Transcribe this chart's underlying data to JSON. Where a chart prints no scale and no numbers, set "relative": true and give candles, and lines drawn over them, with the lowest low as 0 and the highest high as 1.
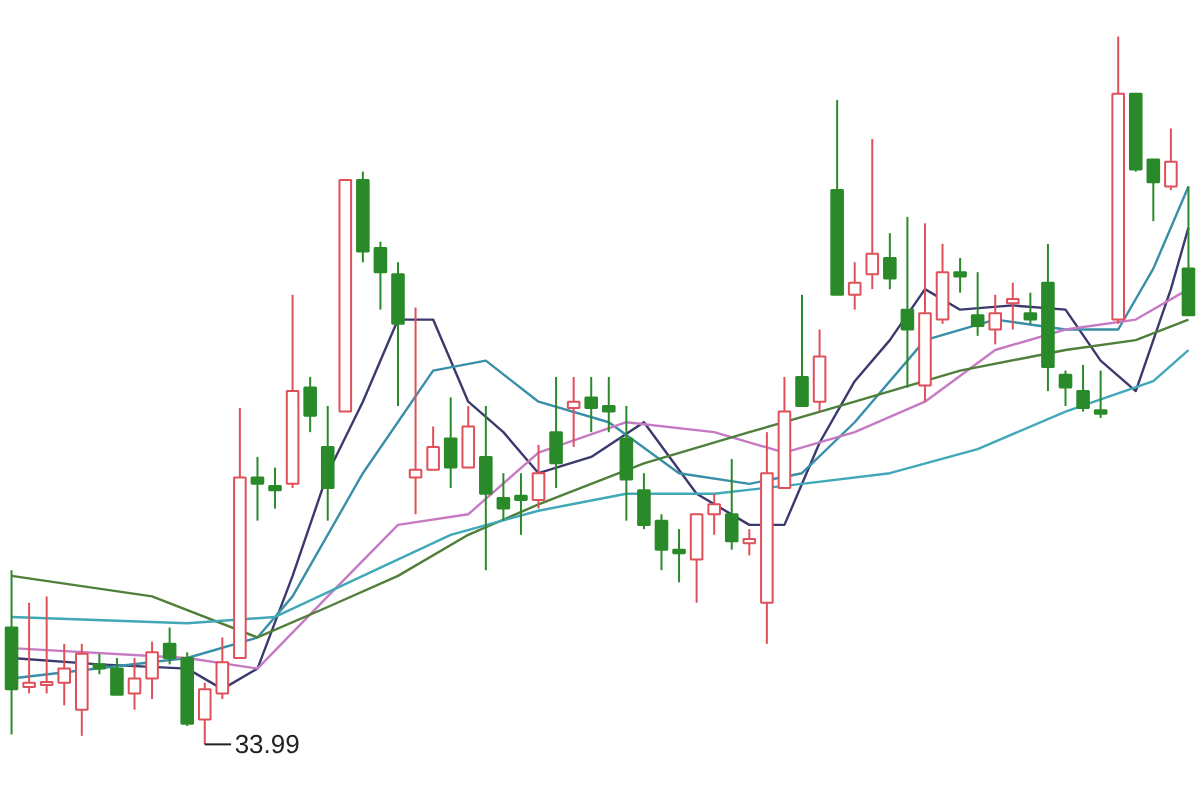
{
  "chart_data": {
    "type": "candlestick",
    "relative": true,
    "categories": [
      null,
      null,
      null,
      null,
      null,
      null,
      null,
      null,
      null,
      null,
      null,
      null,
      null,
      null,
      null,
      null,
      null,
      null,
      null,
      null,
      null,
      null,
      null,
      null,
      null,
      null,
      null,
      null,
      null,
      null,
      null,
      null,
      null,
      null,
      null,
      null,
      null,
      null,
      null,
      null,
      null,
      null,
      null,
      null,
      null,
      null,
      null,
      null,
      null,
      null,
      null,
      null,
      null,
      null,
      null,
      null,
      null,
      null,
      null,
      null,
      null,
      null,
      null,
      null,
      null,
      null,
      null,
      null
    ],
    "ohlc": [
      [
        0.165,
        0.246,
        0.014,
        0.078
      ],
      [
        0.081,
        0.2,
        0.072,
        0.087
      ],
      [
        0.084,
        0.209,
        0.072,
        0.087
      ],
      [
        0.087,
        0.142,
        0.055,
        0.107
      ],
      [
        0.049,
        0.142,
        0.012,
        0.128
      ],
      [
        0.113,
        0.128,
        0.099,
        0.107
      ],
      [
        0.107,
        0.122,
        0.07,
        0.07
      ],
      [
        0.072,
        0.122,
        0.049,
        0.093
      ],
      [
        0.093,
        0.145,
        0.064,
        0.13
      ],
      [
        0.142,
        0.165,
        0.113,
        0.122
      ],
      [
        0.122,
        0.13,
        0.026,
        0.029
      ],
      [
        0.035,
        0.087,
        0,
        0.078
      ],
      [
        0.072,
        0.151,
        0.064,
        0.116
      ],
      [
        0.122,
        0.475,
        0.122,
        0.377
      ],
      [
        0.377,
        0.406,
        0.316,
        0.368
      ],
      [
        0.365,
        0.391,
        0.333,
        0.359
      ],
      [
        0.368,
        0.635,
        0.362,
        0.499
      ],
      [
        0.504,
        0.519,
        0.441,
        0.464
      ],
      [
        0.42,
        0.478,
        0.316,
        0.362
      ],
      [
        0.47,
        0.797,
        0.47,
        0.797
      ],
      [
        0.797,
        0.809,
        0.681,
        0.696
      ],
      [
        0.701,
        0.71,
        0.614,
        0.667
      ],
      [
        0.664,
        0.681,
        0.478,
        0.594
      ],
      [
        0.377,
        0.617,
        0.325,
        0.388
      ],
      [
        0.388,
        0.449,
        0.388,
        0.42
      ],
      [
        0.432,
        0.49,
        0.362,
        0.391
      ],
      [
        0.391,
        0.478,
        0.391,
        0.449
      ],
      [
        0.406,
        0.478,
        0.246,
        0.354
      ],
      [
        0.348,
        0.383,
        0.316,
        0.333
      ],
      [
        0.351,
        0.383,
        0.296,
        0.345
      ],
      [
        0.345,
        0.423,
        0.333,
        0.383
      ],
      [
        0.441,
        0.519,
        0.362,
        0.397
      ],
      [
        0.475,
        0.519,
        0.42,
        0.484
      ],
      [
        0.49,
        0.519,
        0.441,
        0.475
      ],
      [
        0.478,
        0.519,
        0.441,
        0.47
      ],
      [
        0.432,
        0.478,
        0.316,
        0.374
      ],
      [
        0.359,
        0.383,
        0.304,
        0.31
      ],
      [
        0.316,
        0.325,
        0.246,
        0.275
      ],
      [
        0.275,
        0.304,
        0.229,
        0.27
      ],
      [
        0.261,
        0.325,
        0.2,
        0.325
      ],
      [
        0.325,
        0.354,
        0.296,
        0.339
      ],
      [
        0.325,
        0.403,
        0.275,
        0.287
      ],
      [
        0.284,
        0.304,
        0.267,
        0.29
      ],
      [
        0.2,
        0.441,
        0.142,
        0.383
      ],
      [
        0.362,
        0.519,
        0.362,
        0.47
      ],
      [
        0.519,
        0.635,
        0.478,
        0.478
      ],
      [
        0.484,
        0.586,
        0.47,
        0.548
      ],
      [
        0.783,
        0.91,
        0.635,
        0.635
      ],
      [
        0.635,
        0.681,
        0.614,
        0.652
      ],
      [
        0.664,
        0.855,
        0.643,
        0.693
      ],
      [
        0.687,
        0.722,
        0.643,
        0.658
      ],
      [
        0.614,
        0.745,
        0.504,
        0.586
      ],
      [
        0.507,
        0.736,
        0.484,
        0.609
      ],
      [
        0.6,
        0.707,
        0.594,
        0.667
      ],
      [
        0.667,
        0.687,
        0.638,
        0.661
      ],
      [
        0.606,
        0.667,
        0.577,
        0.591
      ],
      [
        0.586,
        0.635,
        0.565,
        0.609
      ],
      [
        0.623,
        0.652,
        0.586,
        0.629
      ],
      [
        0.609,
        0.638,
        0.594,
        0.6
      ],
      [
        0.652,
        0.707,
        0.499,
        0.533
      ],
      [
        0.522,
        0.528,
        0.478,
        0.504
      ],
      [
        0.499,
        0.536,
        0.47,
        0.475
      ],
      [
        0.472,
        0.528,
        0.461,
        0.467
      ],
      [
        0.6,
        1,
        0.594,
        0.919
      ],
      [
        0.919,
        0.919,
        0.809,
        0.812
      ],
      [
        0.826,
        0.826,
        0.739,
        0.794
      ],
      [
        0.788,
        0.87,
        0.783,
        0.823
      ],
      [
        0.672,
        0.788,
        0.606,
        0.606
      ]
    ],
    "colors": [
      "#2a8a2a",
      "#e0505a",
      "#e0505a",
      "#e0505a",
      "#e0505a",
      "#2a8a2a",
      "#2a8a2a",
      "#e0505a",
      "#e0505a",
      "#2a8a2a",
      "#2a8a2a",
      "#e0505a",
      "#e0505a",
      "#e0505a",
      "#2a8a2a",
      "#2a8a2a",
      "#e0505a",
      "#2a8a2a",
      "#2a8a2a",
      "#e0505a",
      "#2a8a2a",
      "#2a8a2a",
      "#2a8a2a",
      "#e0505a",
      "#e0505a",
      "#2a8a2a",
      "#e0505a",
      "#2a8a2a",
      "#2a8a2a",
      "#2a8a2a",
      "#e0505a",
      "#2a8a2a",
      "#e0505a",
      "#2a8a2a",
      "#2a8a2a",
      "#2a8a2a",
      "#2a8a2a",
      "#2a8a2a",
      "#2a8a2a",
      "#e0505a",
      "#e0505a",
      "#2a8a2a",
      "#e0505a",
      "#e0505a",
      "#e0505a",
      "#2a8a2a",
      "#e0505a",
      "#2a8a2a",
      "#e0505a",
      "#e0505a",
      "#2a8a2a",
      "#2a8a2a",
      "#e0505a",
      "#e0505a",
      "#2a8a2a",
      "#2a8a2a",
      "#e0505a",
      "#e0505a",
      "#2a8a2a",
      "#2a8a2a",
      "#2a8a2a",
      "#2a8a2a",
      "#2a8a2a",
      "#e0505a",
      "#2a8a2a",
      "#2a8a2a",
      "#e0505a",
      "#2a8a2a"
    ],
    "series": [
      {
        "type": "line",
        "color": "#3a3a6e",
        "values": [
          0.122,
          null,
          null,
          null,
          null,
          0.113,
          null,
          null,
          null,
          null,
          0.107,
          null,
          0.078,
          null,
          0.107,
          null,
          0.238,
          null,
          0.383,
          null,
          0.484,
          null,
          0.6,
          null,
          0.6,
          null,
          0.484,
          null,
          0.441,
          null,
          0.383,
          null,
          null,
          0.406,
          null,
          null,
          0.455,
          null,
          null,
          0.354,
          null,
          null,
          0.31,
          null,
          0.31,
          null,
          0.426,
          null,
          0.513,
          null,
          0.571,
          null,
          0.643,
          null,
          0.614,
          null,
          null,
          0.62,
          null,
          null,
          0.614,
          null,
          0.542,
          null,
          0.499,
          null,
          0.643,
          0.73
        ]
      },
      {
        "type": "line",
        "color": "#3a8fa8",
        "values": [
          0.093,
          null,
          null,
          null,
          null,
          null,
          null,
          null,
          null,
          null,
          0.122,
          null,
          null,
          null,
          0.151,
          null,
          0.209,
          null,
          null,
          null,
          0.383,
          null,
          null,
          null,
          0.528,
          null,
          null,
          0.542,
          null,
          null,
          0.484,
          null,
          null,
          null,
          0.455,
          null,
          null,
          null,
          0.383,
          null,
          null,
          null,
          0.368,
          null,
          null,
          0.383,
          null,
          null,
          0.455,
          null,
          null,
          null,
          0.571,
          null,
          null,
          null,
          0.6,
          null,
          null,
          null,
          0.586,
          null,
          null,
          0.586,
          null,
          0.672,
          null,
          0.788
        ]
      },
      {
        "type": "line",
        "color": "#c77ac4",
        "values": [
          0.136,
          null,
          null,
          null,
          null,
          null,
          null,
          null,
          null,
          null,
          0.122,
          null,
          null,
          null,
          0.107,
          null,
          null,
          null,
          0.209,
          null,
          null,
          null,
          0.31,
          null,
          null,
          null,
          0.325,
          null,
          null,
          null,
          0.412,
          null,
          null,
          null,
          null,
          0.455,
          null,
          null,
          null,
          null,
          0.441,
          null,
          null,
          null,
          0.412,
          null,
          null,
          null,
          0.441,
          null,
          null,
          null,
          0.484,
          null,
          null,
          null,
          0.557,
          null,
          null,
          null,
          0.586,
          null,
          null,
          null,
          0.6,
          null,
          null,
          0.643
        ]
      },
      {
        "type": "line",
        "color": "#4f7f3a",
        "values": [
          0.238,
          null,
          null,
          null,
          null,
          null,
          null,
          null,
          0.209,
          null,
          null,
          null,
          null,
          null,
          0.151,
          null,
          null,
          null,
          0.194,
          null,
          null,
          null,
          0.238,
          null,
          null,
          null,
          0.296,
          null,
          null,
          null,
          0.339,
          null,
          null,
          null,
          null,
          null,
          0.397,
          null,
          null,
          null,
          null,
          null,
          0.441,
          null,
          null,
          null,
          null,
          null,
          0.484,
          null,
          null,
          null,
          null,
          null,
          0.528,
          null,
          null,
          null,
          null,
          null,
          0.557,
          null,
          null,
          null,
          0.571,
          null,
          null,
          0.6
        ]
      },
      {
        "type": "line",
        "color": "#40a8b8",
        "values": [
          0.18,
          null,
          null,
          null,
          null,
          null,
          null,
          null,
          null,
          null,
          0.171,
          null,
          null,
          null,
          null,
          0.18,
          null,
          null,
          null,
          null,
          0.238,
          null,
          null,
          null,
          null,
          0.296,
          null,
          null,
          null,
          null,
          0.33,
          null,
          null,
          null,
          null,
          0.354,
          null,
          null,
          null,
          null,
          0.354,
          null,
          null,
          null,
          null,
          0.368,
          null,
          null,
          null,
          null,
          0.383,
          null,
          null,
          null,
          null,
          0.417,
          null,
          null,
          null,
          null,
          0.47,
          null,
          null,
          null,
          null,
          0.513,
          null,
          0.557
        ]
      }
    ],
    "annotations": [
      "33.99"
    ]
  }
}
